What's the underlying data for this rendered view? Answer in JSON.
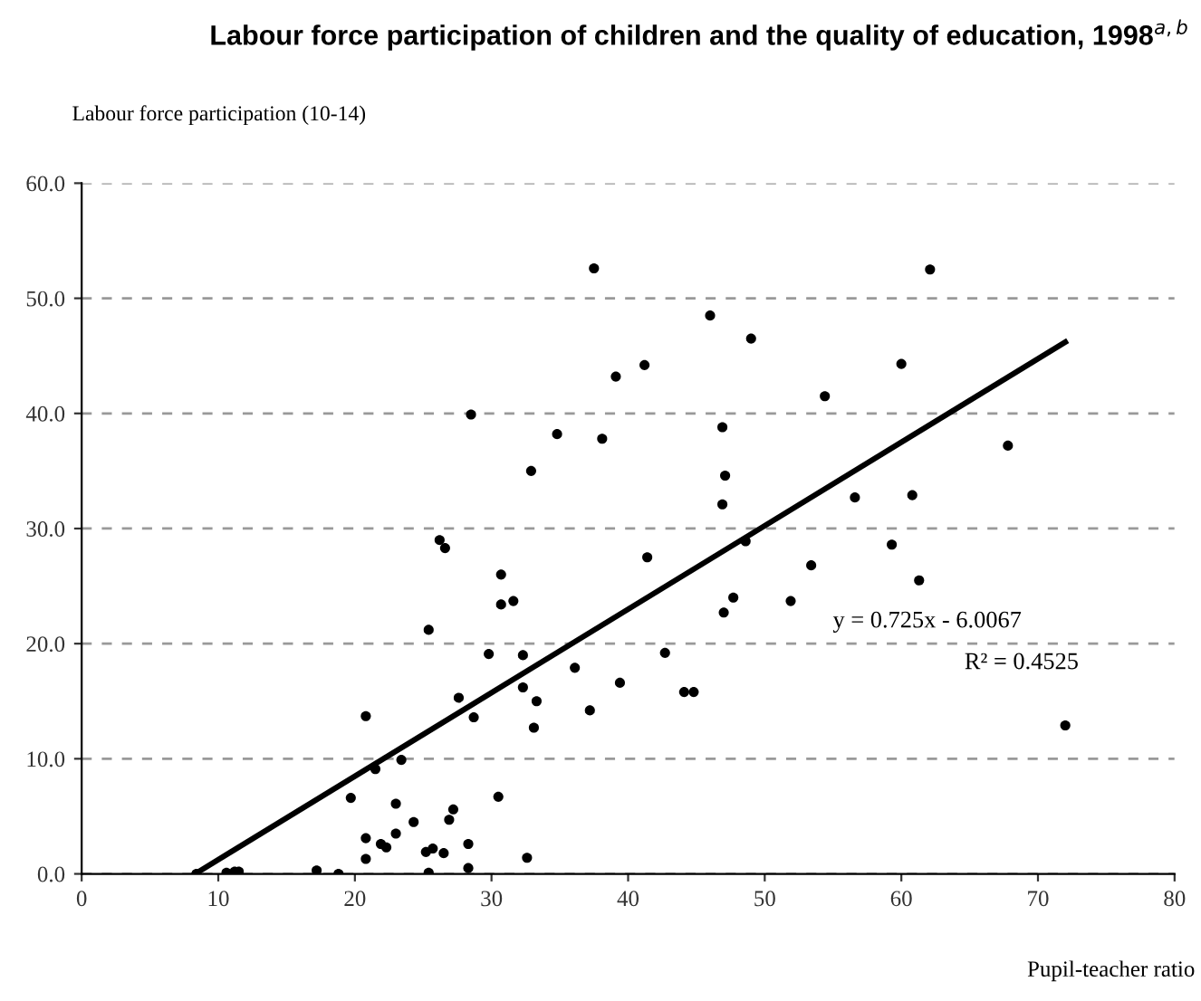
{
  "chart_data": {
    "type": "scatter",
    "title": "Labour force participation of children and the quality of education, 1998$^{a,b}$",
    "ylabel": "Labour force participation (10-14)",
    "xlabel": "Pupil-teacher ratio",
    "annotations": [
      "y = 0.725x - 6.0067",
      "R² = 0.4525"
    ],
    "xlim": [
      0,
      80
    ],
    "xticks": [
      0,
      10,
      20,
      30,
      40,
      50,
      60,
      70,
      80
    ],
    "ylim": [
      0,
      60
    ],
    "yticks": [
      {
        "value": 0,
        "label": "0.0"
      },
      {
        "value": 10,
        "label": "10.0"
      },
      {
        "value": 20,
        "label": "20.0"
      },
      {
        "value": 30,
        "label": "30.0"
      },
      {
        "value": 40,
        "label": "40.0"
      },
      {
        "value": 50,
        "label": "50.0"
      },
      {
        "value": 60,
        "label": "60.0"
      }
    ],
    "grid": "y",
    "marker": "circle",
    "legend": false,
    "series": [
      {
        "color": "#000000",
        "x": [
          8.4,
          10.6,
          11.2,
          11.5,
          17.2,
          18.8,
          20.8,
          19.7,
          20.8,
          20.8,
          21.9,
          22.3,
          21.5,
          23.4,
          23.0,
          23.0,
          24.3,
          25.4,
          25.2,
          25.7,
          26.5,
          25.4,
          27.6,
          27.2,
          26.9,
          28.3,
          28.3,
          28.7,
          29.8,
          30.5,
          30.7,
          30.7,
          26.2,
          26.6,
          37.5,
          46.0,
          49.0,
          39.1,
          41.2,
          54.4,
          28.5,
          34.8,
          38.1,
          46.9,
          47.1,
          32.9,
          46.9,
          56.6,
          48.6,
          41.4,
          53.4,
          31.6,
          47.7,
          47.0,
          51.9,
          32.3,
          42.7,
          36.1,
          32.3,
          33.3,
          39.4,
          44.1,
          44.8,
          37.2,
          33.1,
          32.6,
          62.1,
          60.0,
          67.8,
          60.8,
          59.3,
          61.3,
          72.0
        ],
        "values": [
          0.0,
          0.1,
          0.2,
          0.2,
          0.3,
          0.0,
          13.7,
          6.6,
          3.1,
          1.3,
          2.6,
          2.3,
          9.1,
          9.9,
          6.1,
          3.5,
          4.5,
          21.2,
          1.9,
          2.2,
          1.8,
          0.1,
          15.3,
          5.6,
          4.7,
          2.6,
          0.5,
          13.6,
          19.1,
          6.7,
          26.0,
          23.4,
          29.0,
          28.3,
          52.6,
          48.5,
          46.5,
          43.2,
          44.2,
          41.5,
          39.9,
          38.2,
          37.8,
          38.8,
          34.6,
          35.0,
          32.1,
          32.7,
          28.9,
          27.5,
          26.8,
          23.7,
          24.0,
          22.7,
          23.7,
          19.0,
          19.2,
          17.9,
          16.2,
          15.0,
          16.6,
          15.8,
          15.8,
          14.2,
          12.7,
          1.4,
          52.5,
          44.3,
          37.2,
          32.9,
          28.6,
          25.5,
          12.9
        ]
      },
      {
        "type": "line",
        "color": "#000000",
        "line_style": "solid",
        "marker": "none",
        "x": [
          8.3,
          72
        ],
        "values": [
          0.0,
          46.2
        ]
      }
    ]
  }
}
